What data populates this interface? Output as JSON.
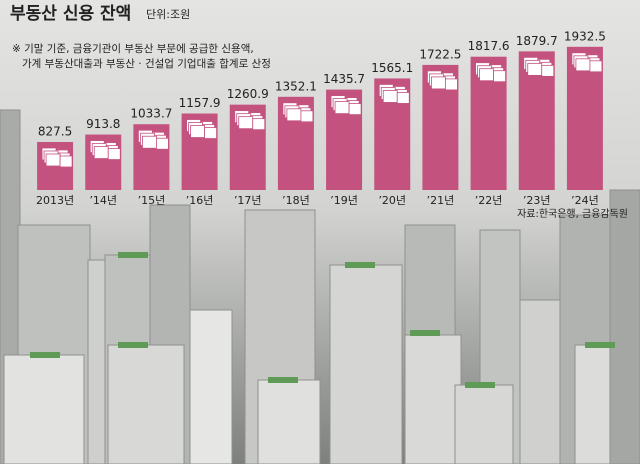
{
  "chart_data": {
    "type": "bar",
    "title": "부동산 신용 잔액",
    "unit": "단위:조원",
    "notes": [
      "※ 기말 기준, 금융기관이 부동산 부문에 공급한 신용액,",
      "가계 부동산대출과 부동산 · 건설업 기업대출 합계로 산정"
    ],
    "source": "자료:한국은행, 금융감독원",
    "categories": [
      "2013년",
      "’14년",
      "’15년",
      "’16년",
      "’17년",
      "’18년",
      "’19년",
      "’20년",
      "’21년",
      "’22년",
      "’23년",
      "’24년"
    ],
    "values": [
      827.5,
      913.8,
      1033.7,
      1157.9,
      1260.9,
      1352.1,
      1435.7,
      1565.1,
      1722.5,
      1817.6,
      1879.7,
      1932.5
    ],
    "color": "#c3527f",
    "ylim": [
      270,
      2000
    ]
  }
}
